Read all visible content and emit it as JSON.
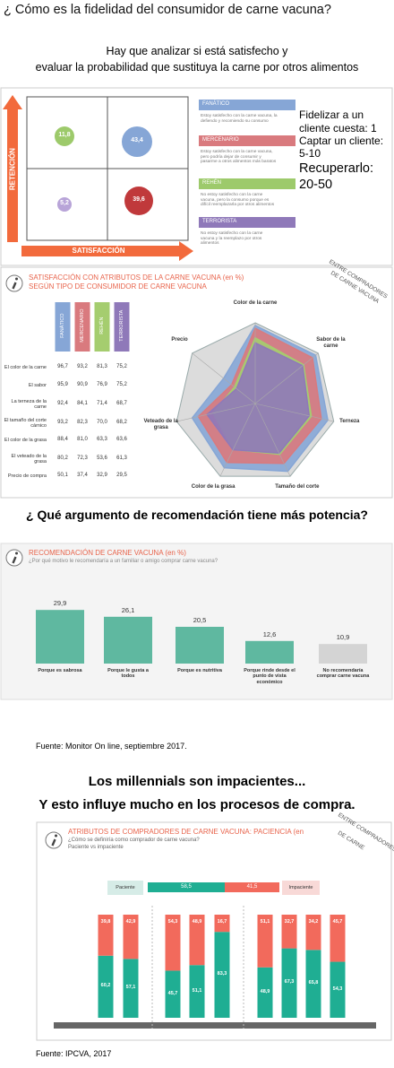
{
  "header": {
    "title": "¿ Cómo es la fidelidad del consumidor de carne vacuna?",
    "subtitle": [
      "Hay que analizar si está satisfecho y",
      "evaluar la probabilidad que sustituya la carne por otros alimentos"
    ]
  },
  "matrix": {
    "y_axis": "RETENCIÓN",
    "x_axis": "SATISFACCIÓN",
    "bubbles": [
      "11,8",
      "43,4",
      "5,2",
      "39,6"
    ],
    "legend": [
      {
        "title": "FANÁTICO",
        "text": "Estoy satisfecho con la carne vacuna, la defiendo y recomiendo su consumo"
      },
      {
        "title": "MERCENARIO",
        "text": "Estoy satisfecho con la carne vacuna, pero podría dejar de consumir y pasarme a otros alimentos más baratos"
      },
      {
        "title": "REHÉN",
        "text": "No estoy satisfecho con la carne vacuna, pero la consumo porque es difícil reemplazarla por otros alimentos"
      },
      {
        "title": "TERRORISTA",
        "text": "No estoy satisfecho con la carne vacuna y la reemplazo por otros alimentos"
      }
    ],
    "notes": [
      "Fidelizar a un",
      "cliente cuesta: 1",
      "Captar un cliente:",
      "5-10",
      "Recuperarlo:",
      "20-50"
    ]
  },
  "question": "¿ Qué argumento de recomendación tiene más potencia?",
  "source_1": "Fuente: Monitor On line, septiembre 2017.",
  "millennials": [
    "Los millennials son impacientes...",
    "Y esto influye mucho en los procesos de compra."
  ],
  "source_2": "Fuente: IPCVA, 2017",
  "chart_data": [
    {
      "type": "radar",
      "title": "SATISFACCIÓN CON ATRIBUTOS DE LA CARNE VACUNA (en %)",
      "subtitle": "SEGÚN TIPO DE CONSUMIDOR DE CARNE VACUNA",
      "note": [
        "ENTRE COMPRADORES",
        "DE CARNE VACUNA"
      ],
      "categories": [
        "Color de la carne",
        "Sabor de la carne",
        "Terneza",
        "Tamaño del corte",
        "Color de la grasa",
        "Veteado de la grasa",
        "Precio"
      ],
      "table_rows": [
        "El color de la carne",
        "El sabor",
        "La terneza de la carne",
        "El tamaño del corte cárnico",
        "El color de la grasa",
        "El veteado de la grasa",
        "Precio de compra"
      ],
      "ylim": [
        0,
        100
      ],
      "series": [
        {
          "name": "FANÁTICO",
          "color": "#86a6d6",
          "values": [
            96.7,
            95.9,
            92.4,
            93.2,
            88.4,
            80.2,
            50.1
          ],
          "value_labels": [
            "96,7",
            "95,9",
            "92,4",
            "93,2",
            "88,4",
            "80,2",
            "50,1"
          ]
        },
        {
          "name": "MERCENARIO",
          "color": "#d97a7e",
          "values": [
            93.2,
            90.9,
            84.1,
            82.3,
            81.0,
            72.3,
            37.4
          ],
          "value_labels": [
            "93,2",
            "90,9",
            "84,1",
            "82,3",
            "81,0",
            "72,3",
            "37,4"
          ]
        },
        {
          "name": "REHÉN",
          "color": "#a5cd6f",
          "values": [
            81.3,
            76.9,
            71.4,
            70.0,
            63.3,
            53.6,
            32.9
          ],
          "value_labels": [
            "81,3",
            "76,9",
            "71,4",
            "70,0",
            "63,3",
            "53,6",
            "32,9"
          ]
        },
        {
          "name": "TERRORISTA",
          "color": "#8f79b9",
          "values": [
            75.2,
            75.2,
            68.7,
            68.2,
            63.6,
            61.3,
            29.5
          ],
          "value_labels": [
            "75,2",
            "75,2",
            "68,7",
            "68,2",
            "63,6",
            "61,3",
            "29,5"
          ]
        }
      ]
    },
    {
      "type": "bar",
      "title": "RECOMENDACIÓN DE CARNE VACUNA (en %)",
      "subtitle": "¿Por qué motivo le recomendaría a un familiar o amigo comprar carne vacuna?",
      "categories": [
        "Porque es sabrosa",
        "Porque le gusta a todos",
        "Porque es nutritiva",
        "Porque rinde desde el punto de vista económico",
        "No recomendaría comprar carne vacuna"
      ],
      "values": [
        29.9,
        26.1,
        20.5,
        12.6,
        10.9
      ],
      "value_labels": [
        "29,9",
        "26,1",
        "20,5",
        "12,6",
        "10,9"
      ],
      "colors": [
        "#5fb8a0",
        "#5fb8a0",
        "#5fb8a0",
        "#5fb8a0",
        "#d4d4d4"
      ],
      "ylim": [
        0,
        32
      ]
    },
    {
      "type": "stacked_bar",
      "title": "ATRIBUTOS DE COMPRADORES DE CARNE VACUNA: PACIENCIA (en",
      "subtitle": [
        "¿Cómo se definiría como comprador de carne vacuna?",
        "Paciente vs impaciente"
      ],
      "note": [
        "ENTRE COMPRADORES",
        "DE CARNE"
      ],
      "categories": [
        null,
        null,
        null,
        null,
        null,
        null,
        null,
        null,
        null
      ],
      "ylim": [
        0,
        100
      ],
      "series": [
        {
          "name": "Paciente",
          "color": "#1fae93",
          "summary": 58.5,
          "summary_label": "58,5",
          "values": [
            60.2,
            57.1,
            45.7,
            51.1,
            83.3,
            48.9,
            67.3,
            65.8,
            54.3
          ],
          "value_labels": [
            "60,2",
            "57,1",
            "45,7",
            "51,1",
            "83,3",
            "48,9",
            "67,3",
            "65,8",
            "54,3"
          ]
        },
        {
          "name": "Impaciente",
          "color": "#f26a5c",
          "summary": 41.5,
          "summary_label": "41,5",
          "values": [
            39.8,
            42.9,
            54.3,
            48.9,
            16.7,
            51.1,
            32.7,
            34.2,
            45.7
          ],
          "value_labels": [
            "39,8",
            "42,9",
            "54,3",
            "48,9",
            "16,7",
            "51,1",
            "32,7",
            "34,2",
            "45,7"
          ]
        }
      ]
    }
  ]
}
